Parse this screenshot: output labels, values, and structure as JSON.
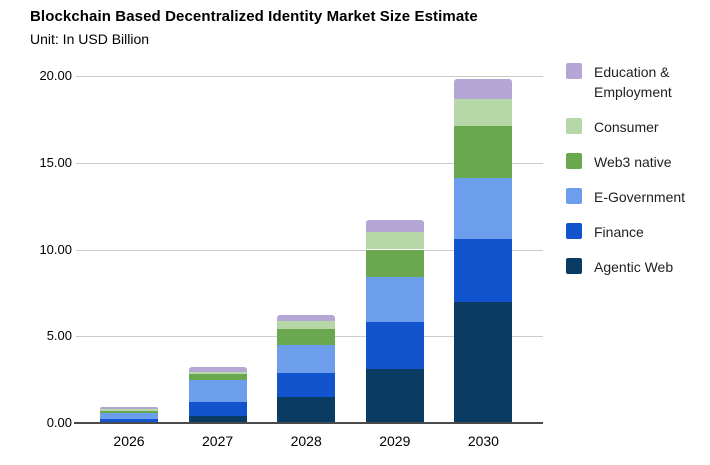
{
  "header": {
    "title": "Blockchain Based Decentralized Identity Market Size Estimate",
    "subtitle": "Unit: In USD Billion"
  },
  "chart_data": {
    "type": "bar",
    "stacked": true,
    "title": "Blockchain Based Decentralized Identity Market Size Estimate",
    "unit_label": "Unit: In USD Billion",
    "categories": [
      "2026",
      "2027",
      "2028",
      "2029",
      "2030"
    ],
    "series": [
      {
        "name": "Agentic Web",
        "color": "#0a3b63",
        "values": [
          0.05,
          0.4,
          1.5,
          3.1,
          7.0
        ]
      },
      {
        "name": "Finance",
        "color": "#1254cd",
        "values": [
          0.2,
          0.8,
          1.4,
          2.7,
          3.6
        ]
      },
      {
        "name": "E-Government",
        "color": "#6d9eeb",
        "values": [
          0.3,
          1.25,
          1.6,
          2.6,
          3.5
        ]
      },
      {
        "name": "Web3 native",
        "color": "#6aa84f",
        "values": [
          0.15,
          0.35,
          0.9,
          1.6,
          3.0
        ]
      },
      {
        "name": "Consumer",
        "color": "#b6d7a8",
        "values": [
          0.1,
          0.15,
          0.5,
          1.0,
          1.6
        ]
      },
      {
        "name": "Education & Employment",
        "color": "#b4a7d6",
        "values": [
          0.1,
          0.25,
          0.3,
          0.7,
          1.1
        ]
      }
    ],
    "legend_order_top_to_bottom": [
      "Education & Employment",
      "Consumer",
      "Web3 native",
      "E-Government",
      "Finance",
      "Agentic Web"
    ],
    "y_axis": {
      "tick_labels": [
        "0.00",
        "5.00",
        "10.00",
        "15.00",
        "20.00"
      ],
      "tick_values": [
        0,
        5,
        10,
        15,
        20
      ],
      "ylim": [
        0,
        20
      ]
    },
    "xlabel": "",
    "ylabel": "",
    "grid": true,
    "legend_position": "right"
  },
  "colors": {
    "background": "#ffffff",
    "gridline": "#cccccc",
    "axis": "#4a4a4a",
    "title_text": "#000000",
    "tick_text": "#000000",
    "legend_text": "#1f1f1f"
  }
}
